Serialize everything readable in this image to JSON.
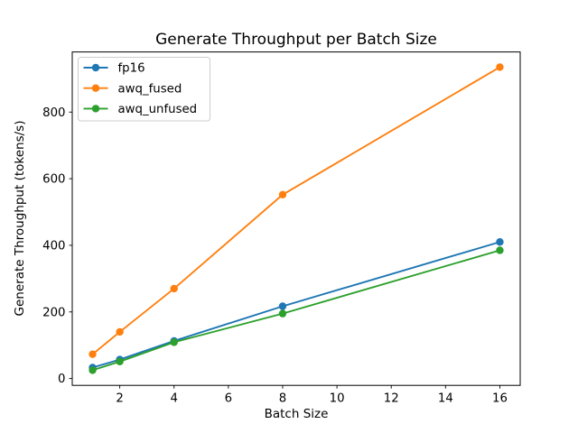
{
  "figure": {
    "background": "#ffffff",
    "text_color": "#000000",
    "spine_color": "#000000"
  },
  "chart_data": {
    "type": "line",
    "title": "Generate Throughput per Batch Size",
    "xlabel": "Batch Size",
    "ylabel": "Generate Throughput (tokens/s)",
    "x": [
      1,
      2,
      4,
      8,
      16
    ],
    "series": [
      {
        "name": "fp16",
        "color": "#1f77b4",
        "values": [
          33,
          57,
          113,
          217,
          410
        ]
      },
      {
        "name": "awq_fused",
        "color": "#ff7f0e",
        "values": [
          73,
          140,
          270,
          552,
          935
        ]
      },
      {
        "name": "awq_unfused",
        "color": "#2ca02c",
        "values": [
          25,
          51,
          109,
          195,
          385
        ]
      }
    ],
    "marker": "o",
    "grid": false,
    "xlim": [
      0.25,
      16.75
    ],
    "ylim": [
      -20.5,
      980.5
    ],
    "xticks": [
      2,
      4,
      6,
      8,
      10,
      12,
      14,
      16
    ],
    "yticks": [
      0,
      200,
      400,
      600,
      800
    ],
    "legend_position": "upper-left",
    "legend_border_color": "#cccccc"
  }
}
